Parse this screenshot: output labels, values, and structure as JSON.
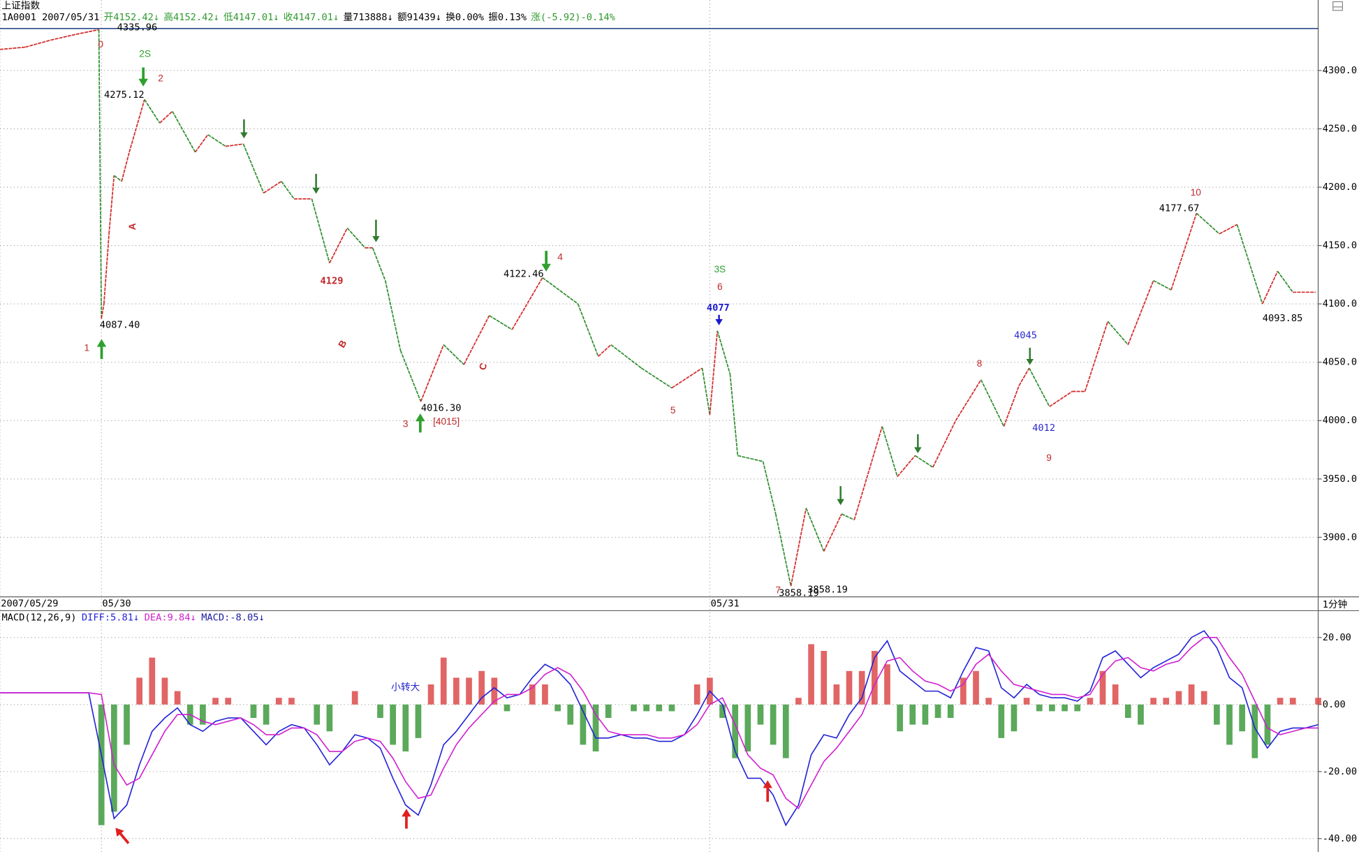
{
  "chart_data": [
    {
      "type": "line",
      "title": "上证指数",
      "info": [
        {
          "text": "1A0001 2007/05/31",
          "color": "#000000"
        },
        {
          "text": "开4152.42↓",
          "color": "#2e9a2e"
        },
        {
          "text": "高4152.42↓",
          "color": "#2e9a2e"
        },
        {
          "text": "低4147.01↓",
          "color": "#2e9a2e"
        },
        {
          "text": "收4147.01↓",
          "color": "#2e9a2e"
        },
        {
          "text": "量713888↓",
          "color": "#000000"
        },
        {
          "text": "额91439↓",
          "color": "#000000"
        },
        {
          "text": "换0.00%",
          "color": "#000000"
        },
        {
          "text": "振0.13%",
          "color": "#000000"
        },
        {
          "text": "涨(-5.92)-0.14%",
          "color": "#2e9a2e"
        }
      ],
      "period": "1分钟",
      "x": [
        0,
        10,
        20,
        30,
        39,
        40,
        41,
        43,
        45,
        48,
        51,
        57,
        63,
        68,
        77,
        82,
        89,
        96,
        104,
        111,
        116,
        123,
        130,
        137,
        144,
        147,
        152,
        158,
        166,
        175,
        183,
        193,
        202,
        214,
        228,
        236,
        241,
        253,
        265,
        277,
        280,
        283,
        288,
        291,
        301,
        306,
        312,
        318,
        325,
        332,
        337,
        348,
        354,
        361,
        368,
        377,
        387,
        396,
        402,
        406,
        414,
        423,
        428,
        437,
        445,
        455,
        462,
        472,
        481,
        488,
        498,
        504,
        510,
        519
      ],
      "values": [
        4318,
        4320,
        4326,
        4331,
        4335,
        4087.4,
        4100,
        4160,
        4210,
        4205,
        4230,
        4275.12,
        4255,
        4265,
        4230,
        4245,
        4235,
        4237,
        4195,
        4205,
        4190,
        4190,
        4135,
        4165,
        4148,
        4148,
        4120,
        4060,
        4016.3,
        4065,
        4048,
        4090,
        4078,
        4122.46,
        4100,
        4055,
        4065,
        4045,
        4028,
        4045,
        4005,
        4077,
        4040,
        3970,
        3965,
        3920,
        3858.19,
        3925,
        3888,
        3920,
        3915,
        3995,
        3952,
        3970,
        3960,
        4000,
        4035,
        3995,
        4030,
        4045,
        4012,
        4025,
        4025,
        4085,
        4065,
        4120,
        4112,
        4177.67,
        4160,
        4168,
        4100,
        4128,
        4110,
        4110
      ],
      "up_color": "#d42a2a",
      "down_color": "#2f8f2f",
      "reference_line": {
        "value": 4335.96,
        "color": "#2a4a8a"
      },
      "xlim": [
        0,
        520
      ],
      "xticks": [
        {
          "value": 0,
          "label": "2007/05/29"
        },
        {
          "value": 40,
          "label": "05/30"
        },
        {
          "value": 280,
          "label": "05/31"
        }
      ],
      "ylim": [
        3849,
        4350
      ],
      "yticks": [
        {
          "value": 3900,
          "label": "3900.0"
        },
        {
          "value": 3950,
          "label": "3950.0"
        },
        {
          "value": 4000,
          "label": "4000.0"
        },
        {
          "value": 4050,
          "label": "4050.0"
        },
        {
          "value": 4100,
          "label": "4100.0"
        },
        {
          "value": 4150,
          "label": "4150.0"
        },
        {
          "value": 4200,
          "label": "4200.0"
        },
        {
          "value": 4250,
          "label": "4250.0"
        },
        {
          "value": 4300,
          "label": "4300.0"
        }
      ],
      "grid": true,
      "annotations": [
        {
          "text": "0",
          "color": "#c0282a"
        },
        {
          "text": "2S",
          "color": "#2ea02e"
        },
        {
          "text": "2",
          "color": "#c0282a"
        },
        {
          "text": "4275.12",
          "color": "#000000"
        },
        {
          "text": "A",
          "color": "#c0282a"
        },
        {
          "text": "4087.40",
          "color": "#000000"
        },
        {
          "text": "1",
          "color": "#c0282a"
        },
        {
          "text": "4129",
          "color": "#c0282a"
        },
        {
          "text": "B",
          "color": "#c0282a"
        },
        {
          "text": "4016.30",
          "color": "#000000"
        },
        {
          "text": "3",
          "color": "#c0282a"
        },
        {
          "text": "[4015]",
          "color": "#c0282a"
        },
        {
          "text": "C",
          "color": "#c0282a"
        },
        {
          "text": "4122.46",
          "color": "#000000"
        },
        {
          "text": "4",
          "color": "#c0282a"
        },
        {
          "text": "5",
          "color": "#c0282a"
        },
        {
          "text": "3S",
          "color": "#2ea02e"
        },
        {
          "text": "6",
          "color": "#c0282a"
        },
        {
          "text": "4077",
          "color": "#1a1ad0"
        },
        {
          "text": "7",
          "color": "#c0282a"
        },
        {
          "text": "3858.19",
          "color": "#000000"
        },
        {
          "text": "3858.19",
          "color": "#000000"
        },
        {
          "text": "8",
          "color": "#c0282a"
        },
        {
          "text": "4045",
          "color": "#2a2ad0"
        },
        {
          "text": "4012",
          "color": "#2a2ad0"
        },
        {
          "text": "9",
          "color": "#c0282a"
        },
        {
          "text": "10",
          "color": "#c0282a"
        },
        {
          "text": "4177.67",
          "color": "#000000"
        },
        {
          "text": "4093.85",
          "color": "#000000"
        },
        {
          "text": "4335.96",
          "color": "#000000"
        }
      ]
    },
    {
      "type": "macd",
      "title": "MACD(12,26,9)",
      "x": [
        0,
        5,
        10,
        15,
        20,
        25,
        30,
        35,
        40,
        45,
        50,
        55,
        60,
        65,
        70,
        75,
        80,
        85,
        90,
        95,
        100,
        105,
        110,
        115,
        120,
        125,
        130,
        135,
        140,
        145,
        150,
        155,
        160,
        165,
        170,
        175,
        180,
        185,
        190,
        195,
        200,
        205,
        210,
        215,
        220,
        225,
        230,
        235,
        240,
        245,
        250,
        255,
        260,
        265,
        270,
        275,
        280,
        285,
        290,
        295,
        300,
        305,
        310,
        315,
        320,
        325,
        330,
        335,
        340,
        345,
        350,
        355,
        360,
        365,
        370,
        375,
        380,
        385,
        390,
        395,
        400,
        405,
        410,
        415,
        420,
        425,
        430,
        435,
        440,
        445,
        450,
        455,
        460,
        465,
        470,
        475,
        480,
        485,
        490,
        495,
        500,
        505,
        510,
        515,
        520
      ],
      "series": [
        {
          "name": "DIFF:5.81↓",
          "color": "#2222d8",
          "values": [
            3.5,
            3.5,
            3.5,
            3.5,
            3.5,
            3.5,
            3.5,
            3.5,
            -15,
            -34,
            -30,
            -18,
            -8,
            -4,
            -1,
            -6,
            -8,
            -5,
            -4,
            -4,
            -8,
            -12,
            -8,
            -6,
            -7,
            -12,
            -18,
            -14,
            -9,
            -10,
            -13,
            -22,
            -30,
            -33,
            -24,
            -12,
            -8,
            -3,
            2,
            5,
            2,
            3,
            8,
            12,
            10,
            6,
            -2,
            -10,
            -10,
            -9,
            -10,
            -10,
            -11,
            -11,
            -9,
            -3,
            4,
            0,
            -14,
            -22,
            -22,
            -27,
            -36,
            -30,
            -15,
            -9,
            -10,
            -3,
            2,
            14,
            19,
            10,
            7,
            4,
            4,
            2,
            10,
            17,
            16,
            5,
            2,
            6,
            3,
            2,
            2,
            1,
            4,
            14,
            16,
            12,
            8,
            11,
            13,
            15,
            20,
            22,
            17,
            8,
            5,
            -7,
            -13,
            -8,
            -7,
            -7,
            -6
          ]
        },
        {
          "name": "DEA:9.84↓",
          "color": "#d020d0",
          "values": [
            3.5,
            3.5,
            3.5,
            3.5,
            3.5,
            3.5,
            3.5,
            3.5,
            3,
            -18,
            -24,
            -22,
            -15,
            -8,
            -3,
            -3,
            -5,
            -6,
            -5,
            -4,
            -6,
            -9,
            -9,
            -7,
            -7,
            -9,
            -14,
            -14,
            -11,
            -10,
            -11,
            -16,
            -23,
            -28,
            -27,
            -19,
            -12,
            -7,
            -3,
            1,
            3,
            3,
            5,
            9,
            11,
            9,
            4,
            -3,
            -8,
            -9,
            -9,
            -9,
            -10,
            -10,
            -9,
            -6,
            0,
            2,
            -6,
            -15,
            -19,
            -21,
            -28,
            -31,
            -24,
            -17,
            -13,
            -8,
            -3,
            6,
            13,
            14,
            10,
            7,
            6,
            4,
            6,
            12,
            15,
            10,
            6,
            5,
            4,
            3,
            3,
            2,
            3,
            9,
            13,
            14,
            11,
            10,
            12,
            13,
            17,
            20,
            20,
            14,
            9,
            1,
            -7,
            -9,
            -8,
            -7,
            -7
          ]
        },
        {
          "name": "MACD:-8.05↓",
          "color": "#1a1aa0",
          "up_color": "#dc4a4a",
          "down_color": "#3e9a3e",
          "values": [
            0,
            0,
            0,
            0,
            0,
            0,
            0,
            0,
            -36,
            -32,
            -12,
            8,
            14,
            8,
            4,
            -6,
            -6,
            2,
            2,
            0,
            -4,
            -6,
            2,
            2,
            0,
            -6,
            -8,
            0,
            4,
            0,
            -4,
            -12,
            -14,
            -10,
            6,
            14,
            8,
            8,
            10,
            8,
            -2,
            0,
            6,
            6,
            -2,
            -6,
            -12,
            -14,
            -4,
            0,
            -2,
            -2,
            -2,
            -2,
            0,
            6,
            8,
            -4,
            -16,
            -14,
            -6,
            -12,
            -16,
            2,
            18,
            16,
            6,
            10,
            10,
            16,
            12,
            -8,
            -6,
            -6,
            -4,
            -4,
            8,
            10,
            2,
            -10,
            -8,
            2,
            -2,
            -2,
            -2,
            -2,
            2,
            10,
            6,
            -4,
            -6,
            2,
            2,
            4,
            6,
            4,
            -6,
            -12,
            -8,
            -16,
            -12,
            2,
            2,
            0,
            2
          ]
        }
      ],
      "ylim": [
        -44,
        28
      ],
      "yticks": [
        {
          "value": -40,
          "label": "-40.00"
        },
        {
          "value": -20,
          "label": "-20.00"
        },
        {
          "value": 0,
          "label": "0.00"
        },
        {
          "value": 20,
          "label": "20.00"
        }
      ],
      "grid": true,
      "annotations": [
        {
          "text": "小转大",
          "color": "#2222cc"
        }
      ]
    }
  ]
}
